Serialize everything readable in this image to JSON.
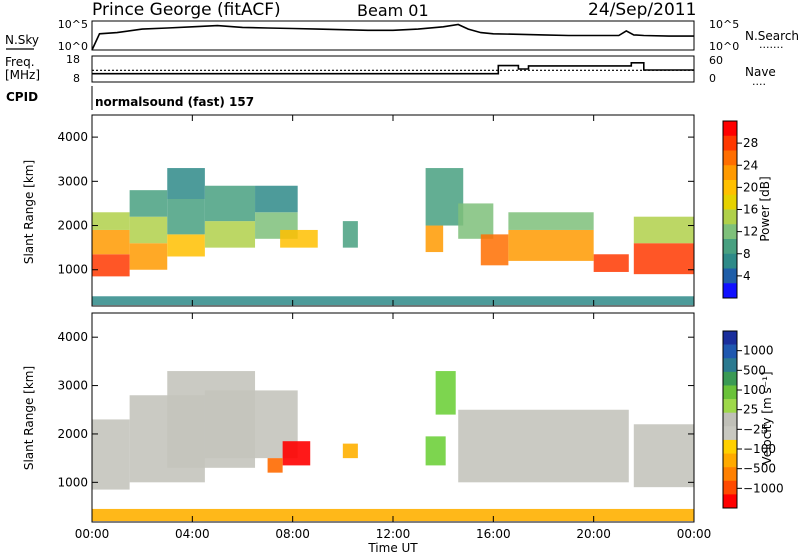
{
  "header": {
    "station": "Prince George (fitACF)",
    "beam": "Beam 01",
    "date": "24/Sep/2011"
  },
  "panels": {
    "nsky": {
      "label": "N.Sky",
      "ticks_left": [
        "10^5",
        "10^0"
      ],
      "ticks_right": [
        "10^5",
        "10^0"
      ],
      "right_label": "N.Search",
      "right_marker": "......."
    },
    "freq": {
      "label_line1": "Freq.",
      "label_line2": "[MHz]",
      "ticks_left": [
        "18",
        "8"
      ],
      "ticks_right": [
        "60",
        "0"
      ],
      "right_label": "Nave",
      "right_marker": "...."
    },
    "cpid": {
      "label": "CPID",
      "value": "normalsound (fast) 157"
    }
  },
  "axes": {
    "ylabel": "Slant Range [km]",
    "yticks": [
      "4000",
      "3000",
      "2000",
      "1000"
    ],
    "xlabel": "Time UT",
    "xticks": [
      "00:00",
      "04:00",
      "08:00",
      "12:00",
      "16:00",
      "20:00",
      "00:00"
    ]
  },
  "colorbars": {
    "power": {
      "label": "Power [dB]",
      "ticks": [
        "28",
        "24",
        "20",
        "16",
        "12",
        "8",
        "4"
      ],
      "colors": [
        "#ff0000",
        "#ff3800",
        "#ff6e00",
        "#ff9a00",
        "#ffc000",
        "#e6d200",
        "#b0d04a",
        "#7ec07a",
        "#48a080",
        "#2e8a88",
        "#1f5ea8",
        "#1010ff"
      ]
    },
    "velocity": {
      "label": "Velocity [m s⁻¹]",
      "ticks": [
        "1000",
        "500",
        "100",
        "25",
        "−25",
        "−100",
        "−500",
        "−1000"
      ],
      "colors": [
        "#1a2e9c",
        "#1f58b0",
        "#2b7a90",
        "#3a9a55",
        "#6ac23a",
        "#9ed84a",
        "#c0c0b8",
        "#c8c8c0",
        "#ffd000",
        "#ffaa00",
        "#ff8000",
        "#ff4a00",
        "#ff0000"
      ]
    }
  },
  "chart_data": [
    {
      "type": "line",
      "title": "N.Sky / N.Search",
      "x_unit": "hours UT",
      "ylim_log10": [
        0,
        5
      ],
      "series": [
        {
          "name": "N.Sky",
          "x": [
            0.0,
            0.3,
            1,
            2,
            3,
            4,
            5,
            6,
            7,
            8,
            9,
            10,
            11,
            12,
            13,
            14,
            14.6,
            15,
            15.5,
            16,
            17,
            18,
            19,
            20,
            21,
            21.3,
            21.6,
            22,
            23,
            24
          ],
          "y": [
            0,
            2.8,
            3.0,
            3.6,
            3.8,
            4.0,
            4.2,
            3.9,
            3.8,
            3.7,
            3.6,
            3.5,
            3.4,
            3.4,
            3.6,
            4.0,
            4.4,
            3.6,
            3.0,
            2.8,
            2.7,
            2.6,
            2.5,
            2.5,
            2.5,
            3.3,
            2.6,
            2.5,
            2.4,
            2.4
          ]
        }
      ]
    },
    {
      "type": "line",
      "title": "Freq. / Nave",
      "x_unit": "hours UT",
      "ylim": [
        8,
        18
      ],
      "series": [
        {
          "name": "Freq.",
          "x": [
            0,
            16.2,
            16.2,
            17.0,
            17.0,
            17.4,
            17.4,
            21.5,
            21.5,
            22.0,
            22.0,
            24
          ],
          "y": [
            11.2,
            11.2,
            14.3,
            14.3,
            13.0,
            13.0,
            14.2,
            14.2,
            15.4,
            15.4,
            12.6,
            12.6
          ]
        },
        {
          "name": "Nave",
          "x": [
            0,
            24
          ],
          "y": [
            12.5,
            12.5
          ]
        }
      ]
    },
    {
      "type": "heatmap",
      "title": "Power",
      "x_unit": "hours UT",
      "y_unit": "km",
      "ylim": [
        180,
        4500
      ],
      "xlim": [
        0,
        24
      ],
      "zlim": [
        0,
        32
      ],
      "cells": [
        [
          0.0,
          1.5,
          850,
          1350,
          30
        ],
        [
          0.0,
          1.5,
          1350,
          1900,
          22
        ],
        [
          0.0,
          1.5,
          1900,
          2300,
          14
        ],
        [
          1.5,
          3.0,
          1000,
          1600,
          24
        ],
        [
          1.5,
          3.0,
          1600,
          2200,
          14
        ],
        [
          1.5,
          3.0,
          2200,
          2800,
          8
        ],
        [
          3.0,
          4.5,
          1300,
          1800,
          20
        ],
        [
          3.0,
          4.5,
          1800,
          2600,
          10
        ],
        [
          3.0,
          4.5,
          2600,
          3300,
          6
        ],
        [
          4.5,
          6.5,
          1500,
          2100,
          16
        ],
        [
          4.5,
          6.5,
          2100,
          2900,
          8
        ],
        [
          6.5,
          8.2,
          1700,
          2300,
          12
        ],
        [
          6.5,
          8.2,
          2300,
          2900,
          6
        ],
        [
          7.5,
          9.0,
          1500,
          1900,
          20
        ],
        [
          10.0,
          10.6,
          1500,
          2100,
          8
        ],
        [
          13.3,
          14.0,
          1400,
          2000,
          22
        ],
        [
          13.3,
          14.8,
          2000,
          3300,
          8
        ],
        [
          14.6,
          16.0,
          1700,
          2500,
          12
        ],
        [
          15.5,
          16.6,
          1100,
          1800,
          26
        ],
        [
          16.6,
          20.0,
          1200,
          1900,
          24
        ],
        [
          16.6,
          20.0,
          1900,
          2300,
          12
        ],
        [
          20.0,
          21.4,
          950,
          1350,
          28
        ],
        [
          21.6,
          24.0,
          900,
          1600,
          30
        ],
        [
          21.6,
          24.0,
          1600,
          2200,
          14
        ],
        [
          0.0,
          24.0,
          200,
          400,
          6
        ]
      ]
    },
    {
      "type": "heatmap",
      "title": "Velocity",
      "x_unit": "hours UT",
      "y_unit": "km",
      "ylim": [
        180,
        4500
      ],
      "xlim": [
        0,
        24
      ],
      "zlim": [
        -1000,
        1000
      ],
      "cells": [
        [
          0.0,
          1.5,
          850,
          2300,
          0
        ],
        [
          1.5,
          4.5,
          1000,
          2800,
          0
        ],
        [
          3.0,
          6.5,
          1300,
          3300,
          0
        ],
        [
          4.5,
          8.2,
          1500,
          2900,
          0
        ],
        [
          7.6,
          8.7,
          1350,
          1850,
          -900
        ],
        [
          7.0,
          7.6,
          1200,
          1500,
          -300
        ],
        [
          10.0,
          10.6,
          1500,
          1800,
          -200
        ],
        [
          13.3,
          14.1,
          1350,
          1950,
          150
        ],
        [
          13.7,
          14.5,
          2400,
          3300,
          150
        ],
        [
          14.6,
          21.4,
          1000,
          2500,
          0
        ],
        [
          21.6,
          24.0,
          900,
          2200,
          0
        ],
        [
          0.0,
          24.0,
          200,
          450,
          -120
        ]
      ]
    }
  ]
}
